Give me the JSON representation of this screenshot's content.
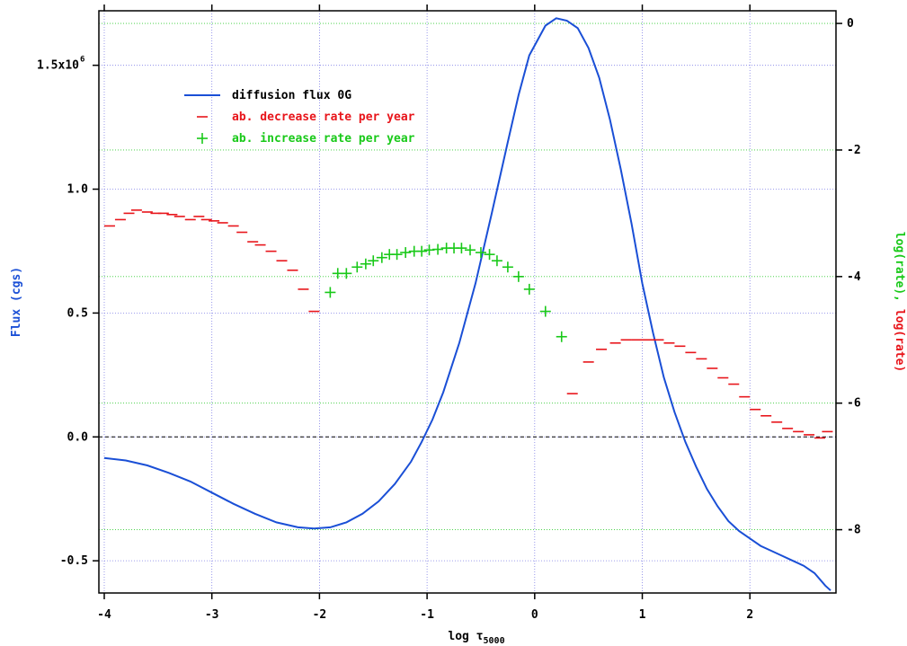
{
  "chart_data": {
    "type": "line",
    "xlabel": "log τ",
    "xlabel_sub": "5000",
    "ylabel_left": "Flux (cgs)",
    "ylabel_right": "log(rate), log(rate)",
    "xlim": [
      -4.05,
      2.8
    ],
    "ylim_left": [
      -0.63,
      1.72
    ],
    "ylim_right": [
      -9.0,
      0.2
    ],
    "x_ticks": [
      -4,
      -3,
      -2,
      -1,
      0,
      1,
      2
    ],
    "x_tick_labels": [
      "-4",
      "-3",
      "-2",
      "-1",
      "0",
      "1",
      "2"
    ],
    "y_left_ticks": [
      -0.5,
      0.0,
      0.5,
      1.0,
      1.5
    ],
    "y_left_tick_labels": [
      "-0.5",
      "0.0",
      "0.5",
      "1.0",
      "1.5x10"
    ],
    "y_left_top_exponent": "6",
    "y_right_ticks": [
      -8,
      -6,
      -4,
      -2,
      0
    ],
    "y_right_tick_labels": [
      "-8",
      "-6",
      "-4",
      "-2",
      "0"
    ],
    "grid": true,
    "legend_position": "top-left",
    "legend": [
      {
        "label": "diffusion flux 0G",
        "color": "#1a4fd6",
        "marker": "line"
      },
      {
        "label": "ab. decrease rate per year",
        "color": "#e8151b",
        "marker": "dash"
      },
      {
        "label": "ab. increase rate per year",
        "color": "#19c919",
        "marker": "plus"
      }
    ],
    "series": [
      {
        "name": "diffusion flux 0G",
        "axis": "left",
        "color": "#1a4fd6",
        "x": [
          -4.0,
          -3.8,
          -3.6,
          -3.4,
          -3.2,
          -3.0,
          -2.8,
          -2.6,
          -2.4,
          -2.2,
          -2.05,
          -1.9,
          -1.75,
          -1.6,
          -1.45,
          -1.3,
          -1.15,
          -1.05,
          -0.95,
          -0.85,
          -0.7,
          -0.55,
          -0.4,
          -0.25,
          -0.15,
          -0.05,
          0.0,
          0.1,
          0.2,
          0.3,
          0.4,
          0.5,
          0.6,
          0.7,
          0.8,
          0.9,
          1.0,
          1.1,
          1.2,
          1.3,
          1.4,
          1.5,
          1.6,
          1.7,
          1.8,
          1.9,
          2.0,
          2.1,
          2.2,
          2.3,
          2.4,
          2.5,
          2.6,
          2.7,
          2.75
        ],
        "y": [
          -0.085,
          -0.095,
          -0.115,
          -0.145,
          -0.18,
          -0.225,
          -0.27,
          -0.31,
          -0.345,
          -0.365,
          -0.37,
          -0.365,
          -0.345,
          -0.31,
          -0.26,
          -0.19,
          -0.1,
          -0.02,
          0.07,
          0.18,
          0.38,
          0.62,
          0.9,
          1.19,
          1.38,
          1.54,
          1.58,
          1.66,
          1.69,
          1.68,
          1.65,
          1.57,
          1.45,
          1.28,
          1.08,
          0.86,
          0.62,
          0.42,
          0.24,
          0.1,
          -0.02,
          -0.12,
          -0.21,
          -0.28,
          -0.34,
          -0.38,
          -0.41,
          -0.44,
          -0.46,
          -0.48,
          -0.5,
          -0.52,
          -0.55,
          -0.6,
          -0.62
        ]
      },
      {
        "name": "ab. decrease rate per year",
        "axis": "right",
        "color": "#e8151b",
        "x": [
          -3.95,
          -3.85,
          -3.77,
          -3.7,
          -3.6,
          -3.52,
          -3.45,
          -3.37,
          -3.3,
          -3.2,
          -3.12,
          -3.05,
          -2.98,
          -2.9,
          -2.8,
          -2.72,
          -2.62,
          -2.55,
          -2.45,
          -2.35,
          -2.25,
          -2.15,
          -2.05,
          0.35,
          0.5,
          0.62,
          0.75,
          0.85,
          0.95,
          1.05,
          1.15,
          1.25,
          1.35,
          1.45,
          1.55,
          1.65,
          1.75,
          1.85,
          1.95,
          2.05,
          2.15,
          2.25,
          2.35,
          2.45,
          2.55,
          2.65,
          2.72
        ],
        "y": [
          -3.2,
          -3.1,
          -3.0,
          -2.95,
          -2.98,
          -3.0,
          -3.0,
          -3.02,
          -3.05,
          -3.1,
          -3.05,
          -3.1,
          -3.12,
          -3.15,
          -3.2,
          -3.3,
          -3.45,
          -3.5,
          -3.6,
          -3.75,
          -3.9,
          -4.2,
          -4.55,
          -5.85,
          -5.35,
          -5.15,
          -5.05,
          -5.0,
          -5.0,
          -5.0,
          -5.0,
          -5.05,
          -5.1,
          -5.2,
          -5.3,
          -5.45,
          -5.6,
          -5.7,
          -5.9,
          -6.1,
          -6.2,
          -6.3,
          -6.4,
          -6.45,
          -6.5,
          -6.55,
          -6.45
        ]
      },
      {
        "name": "ab. increase rate per year",
        "axis": "right",
        "color": "#19c919",
        "x": [
          -1.9,
          -1.83,
          -1.75,
          -1.65,
          -1.57,
          -1.5,
          -1.42,
          -1.35,
          -1.28,
          -1.2,
          -1.12,
          -1.05,
          -0.98,
          -0.9,
          -0.82,
          -0.75,
          -0.68,
          -0.6,
          -0.5,
          -0.42,
          -0.35,
          -0.25,
          -0.15,
          -0.05,
          0.1,
          0.25
        ],
        "y": [
          -4.25,
          -3.95,
          -3.95,
          -3.85,
          -3.8,
          -3.75,
          -3.7,
          -3.65,
          -3.65,
          -3.62,
          -3.6,
          -3.6,
          -3.58,
          -3.57,
          -3.55,
          -3.55,
          -3.55,
          -3.58,
          -3.62,
          -3.65,
          -3.75,
          -3.85,
          -4.0,
          -4.2,
          -4.55,
          -4.95
        ]
      }
    ]
  }
}
